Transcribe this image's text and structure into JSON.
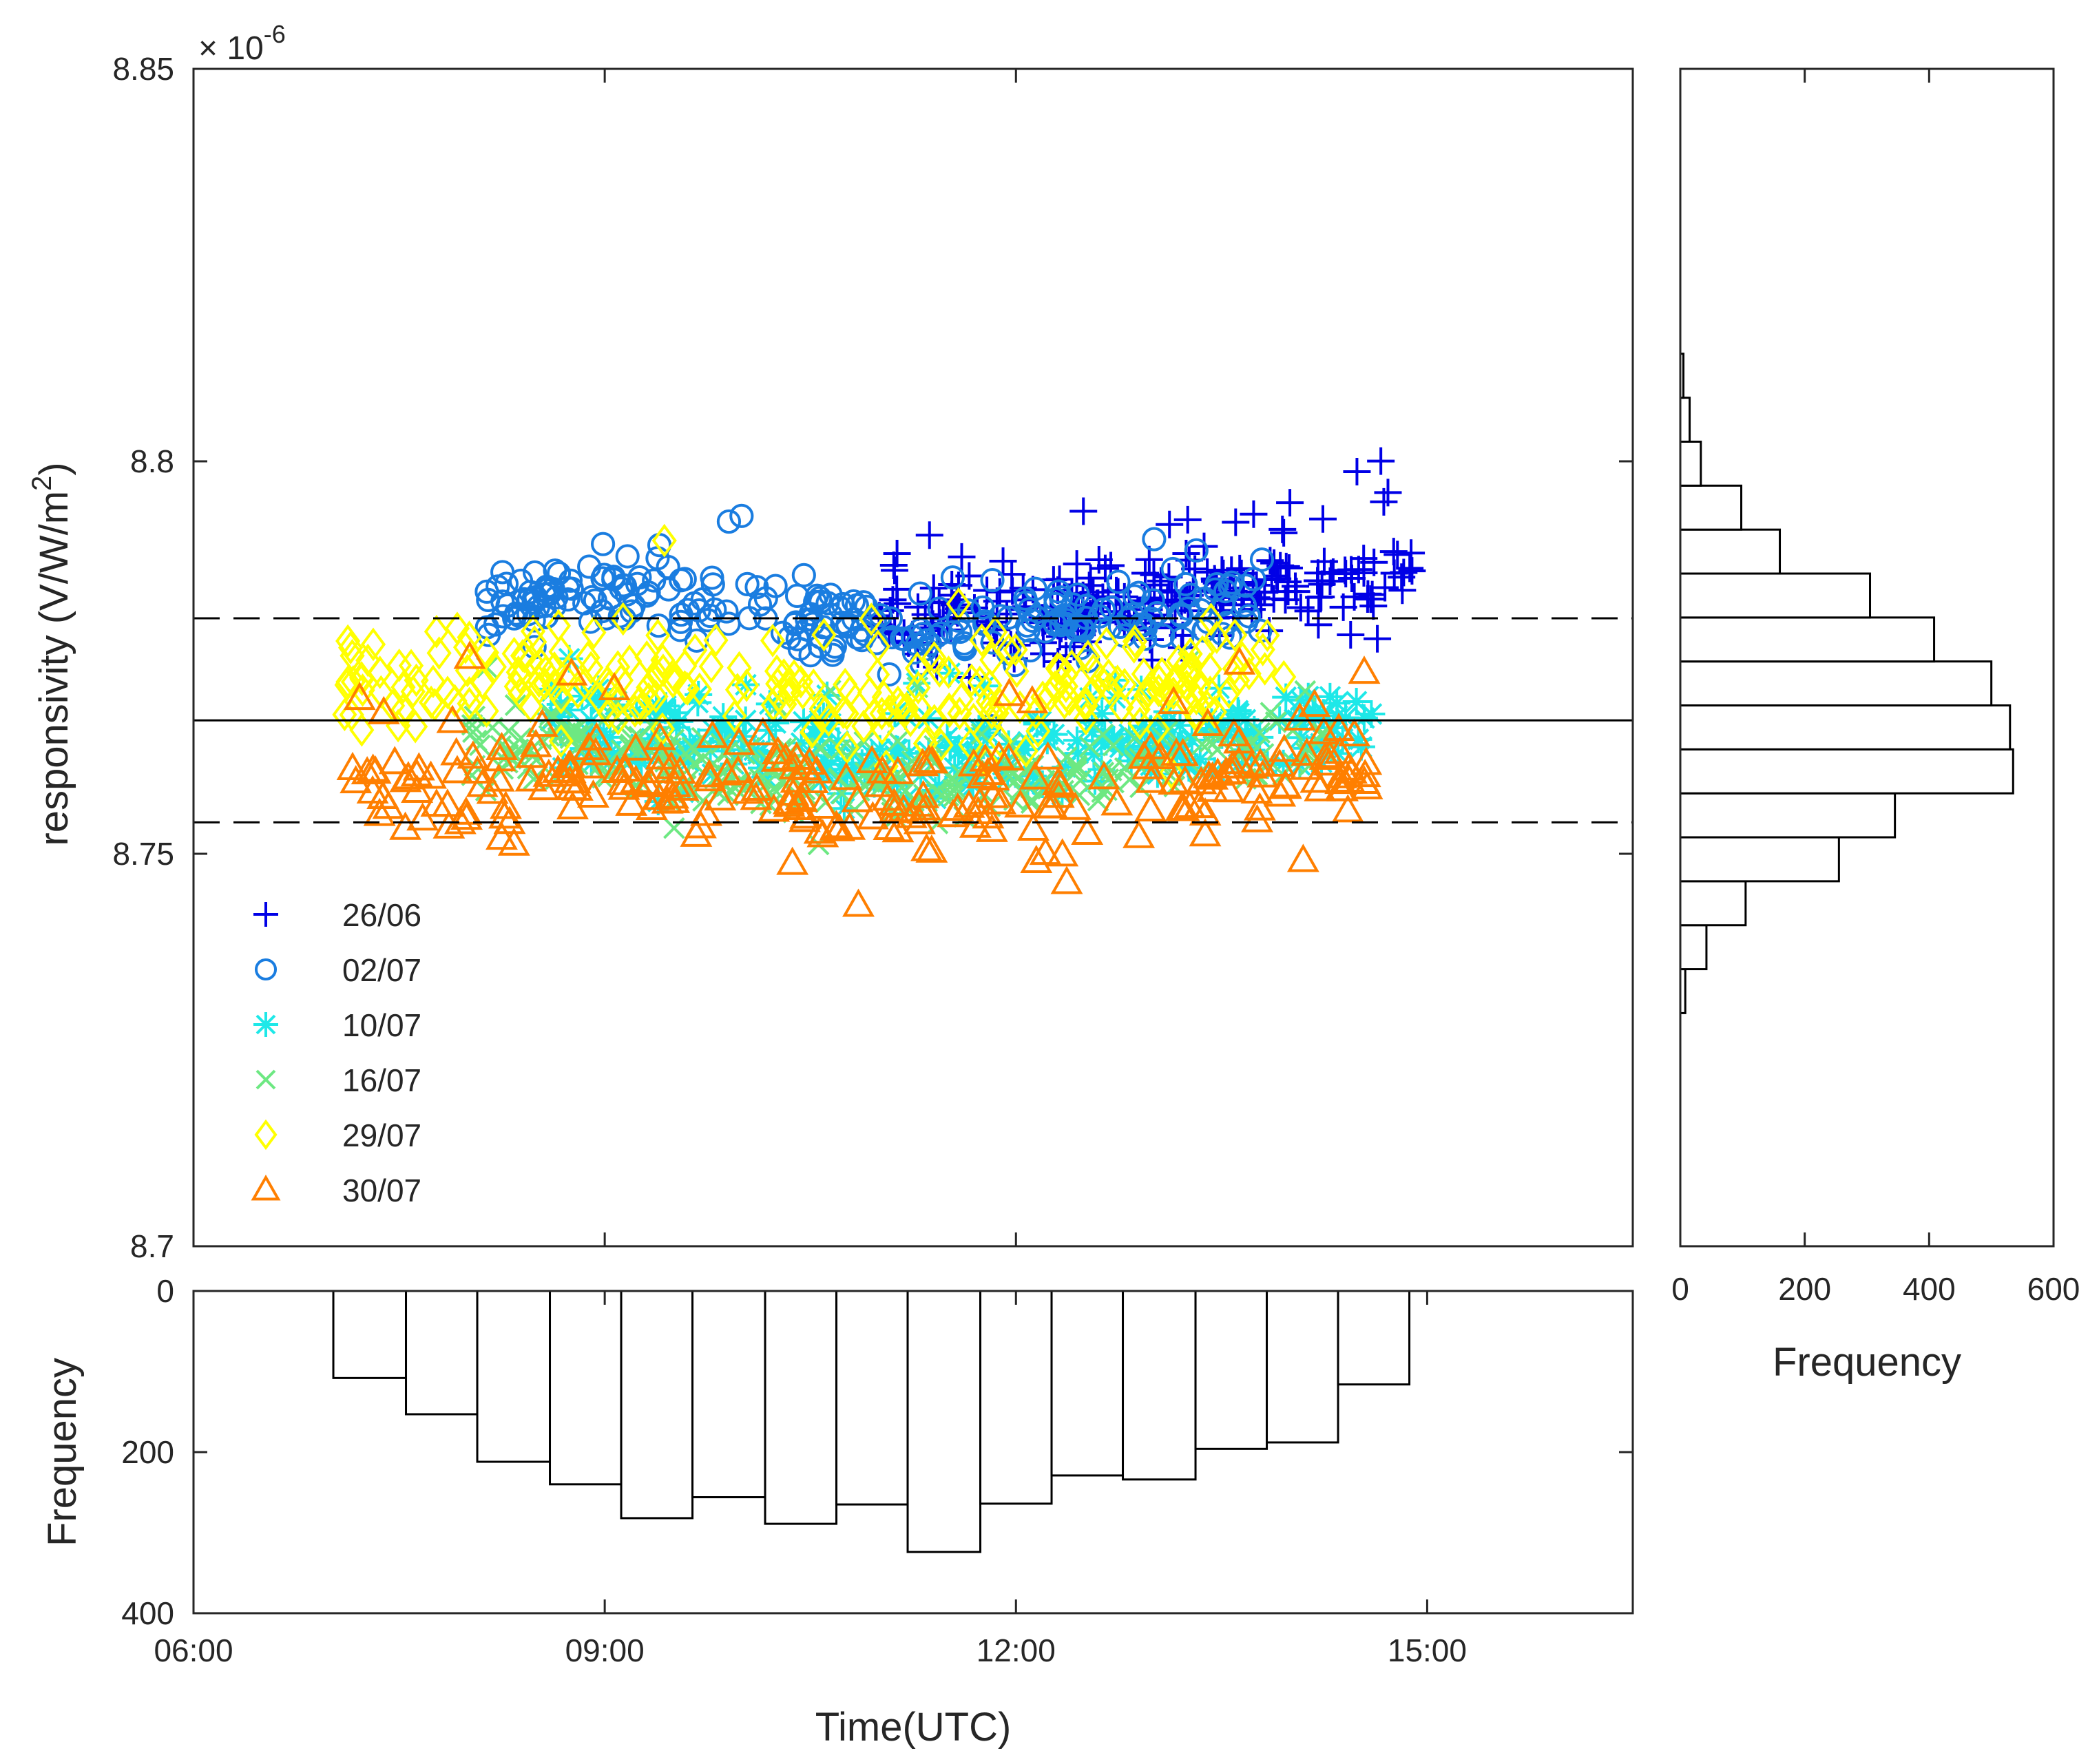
{
  "chart_data": [
    {
      "type": "scatter",
      "panel": "main",
      "ylabel": "responsivity (V/W/m",
      "ylabel_superscript": "2",
      "ylabel_close": ")",
      "y_multiplier_base": "× 10",
      "y_multiplier_exp": "-6",
      "xlim": [
        6.0,
        16.5
      ],
      "ylim": [
        8.7,
        8.85
      ],
      "yticks": [
        8.7,
        8.75,
        8.8,
        8.85
      ],
      "ytick_labels": [
        "8.7",
        "8.75",
        "8.8",
        "8.85"
      ],
      "xticks": [
        9,
        12
      ],
      "reference_lines": {
        "mean": 8.767,
        "upper_bound": 8.78,
        "lower_bound": 8.754
      },
      "legend_position": "bottom-left",
      "series": [
        {
          "name": "26/06",
          "marker": "plus",
          "color": "#0000e6",
          "t_range": [
            11.0,
            14.9
          ],
          "center": 8.784,
          "spread": 0.006
        },
        {
          "name": "02/07",
          "marker": "circle",
          "color": "#1a7de0",
          "t_range": [
            8.1,
            13.8
          ],
          "center": 8.783,
          "spread": 0.006
        },
        {
          "name": "10/07",
          "marker": "asterisk",
          "color": "#1ee8e8",
          "t_range": [
            8.6,
            14.6
          ],
          "center": 8.766,
          "spread": 0.006
        },
        {
          "name": "16/07",
          "marker": "x",
          "color": "#6de882",
          "t_range": [
            8.0,
            14.3
          ],
          "center": 8.763,
          "spread": 0.006
        },
        {
          "name": "29/07",
          "marker": "diamond",
          "color": "#ffff00",
          "t_range": [
            7.1,
            14.0
          ],
          "center": 8.773,
          "spread": 0.007
        },
        {
          "name": "30/07",
          "marker": "triangle",
          "color": "#ff7f00",
          "t_range": [
            7.0,
            14.6
          ],
          "center": 8.76,
          "spread": 0.008
        }
      ]
    },
    {
      "type": "bar",
      "panel": "bottom-histogram",
      "orientation": "downward",
      "ylabel": "Frequency",
      "xlabel": "Time(UTC)",
      "xlim": [
        6.0,
        16.5
      ],
      "ylim": [
        0,
        400
      ],
      "yticks": [
        0,
        200,
        400
      ],
      "xticks": [
        6,
        9,
        12,
        15
      ],
      "xtick_labels": [
        "06:00",
        "09:00",
        "12:00",
        "15:00"
      ],
      "bin_edges": [
        7.02,
        7.55,
        8.07,
        8.6,
        9.12,
        9.64,
        10.17,
        10.69,
        11.21,
        11.74,
        12.26,
        12.78,
        13.31,
        13.83,
        14.35,
        14.87
      ],
      "values": [
        108,
        153,
        212,
        240,
        282,
        256,
        289,
        265,
        324,
        264,
        229,
        234,
        196,
        188,
        116
      ]
    },
    {
      "type": "bar",
      "panel": "right-histogram",
      "orientation": "horizontal",
      "xlabel": "Frequency",
      "xlim": [
        0,
        600
      ],
      "xticks": [
        0,
        200,
        400,
        600
      ],
      "ylim": [
        8.7,
        8.85
      ],
      "bin_edges": [
        8.7297,
        8.7353,
        8.7409,
        8.7465,
        8.7521,
        8.7577,
        8.7633,
        8.7689,
        8.7745,
        8.7801,
        8.7857,
        8.7913,
        8.7969,
        8.8025,
        8.8081,
        8.8137
      ],
      "values": [
        8,
        42,
        105,
        255,
        345,
        535,
        530,
        500,
        408,
        305,
        160,
        98,
        33,
        15,
        5
      ]
    }
  ]
}
